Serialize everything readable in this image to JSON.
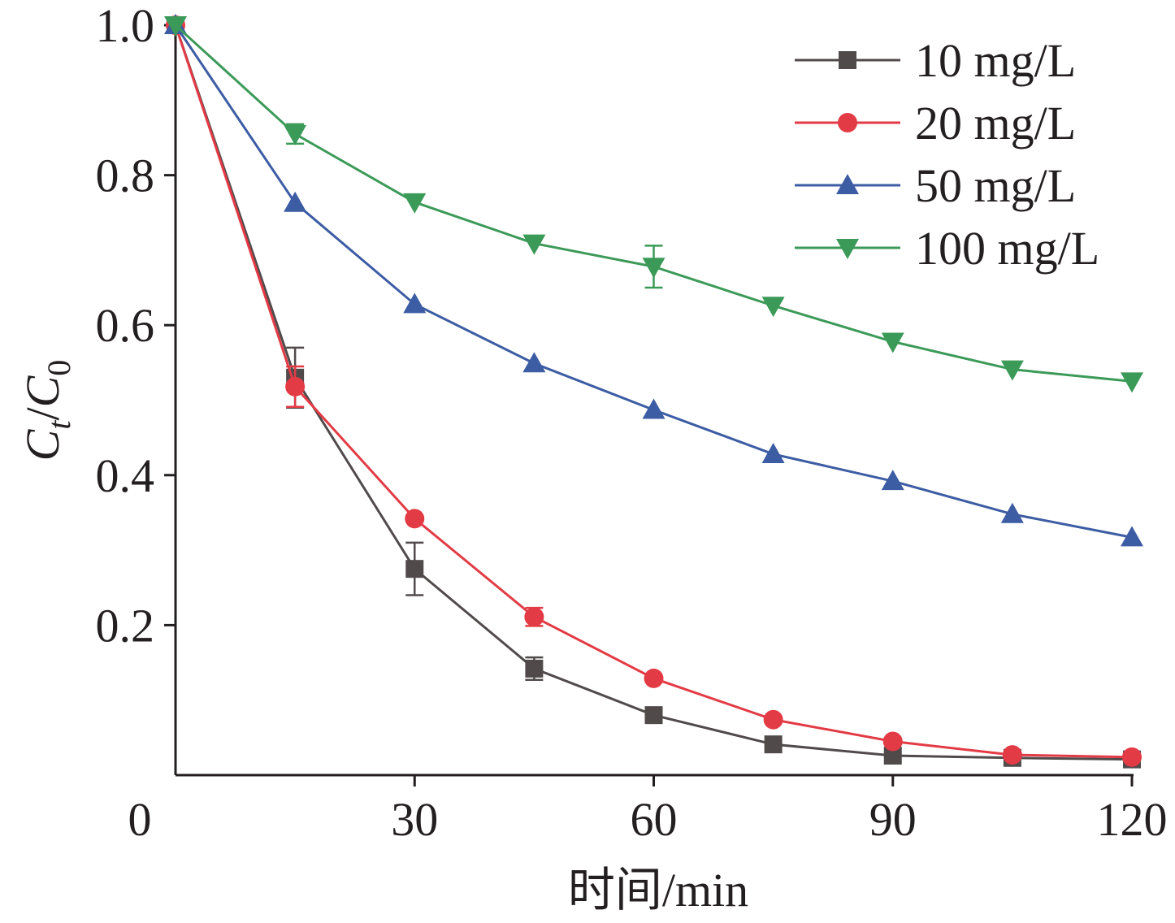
{
  "chart_data": {
    "type": "line",
    "xlabel": "时间/min",
    "ylabel": {
      "main": "C",
      "sub1": "t",
      "slash": "/",
      "main2": "C",
      "sub2": "0"
    },
    "xlim": [
      0,
      120
    ],
    "ylim": [
      0,
      1.0
    ],
    "xticks": [
      0,
      30,
      60,
      90,
      120
    ],
    "xtick_labels": [
      "0",
      "30",
      "60",
      "90",
      "120"
    ],
    "yticks": [
      0.2,
      0.4,
      0.6,
      0.8,
      1.0
    ],
    "ytick_labels": [
      "0.2",
      "0.4",
      "0.6",
      "0.8",
      "1.0"
    ],
    "grid": false,
    "legend_position": "top-right",
    "x": [
      0,
      15,
      30,
      45,
      60,
      75,
      90,
      105,
      120
    ],
    "series": [
      {
        "name": "10 mg/L",
        "color": "#504a4b",
        "marker": "square",
        "values": [
          1.0,
          0.53,
          0.275,
          0.142,
          0.08,
          0.041,
          0.026,
          0.023,
          0.021
        ],
        "errors": [
          0.0,
          0.04,
          0.035,
          0.015,
          0.0,
          0.0,
          0.0,
          0.0,
          0.0
        ]
      },
      {
        "name": "20 mg/L",
        "color": "#e33b45",
        "marker": "circle",
        "values": [
          1.0,
          0.518,
          0.342,
          0.211,
          0.129,
          0.074,
          0.045,
          0.027,
          0.024
        ],
        "errors": [
          0.0,
          0.027,
          0.0,
          0.012,
          0.0,
          0.0,
          0.0,
          0.0,
          0.0
        ]
      },
      {
        "name": "50 mg/L",
        "color": "#3c5ca4",
        "marker": "triangle-up",
        "values": [
          1.0,
          0.763,
          0.628,
          0.549,
          0.487,
          0.428,
          0.392,
          0.348,
          0.317
        ],
        "errors": [
          0.0,
          0.0,
          0.0,
          0.0,
          0.0,
          0.0,
          0.0,
          0.0,
          0.0
        ]
      },
      {
        "name": "100 mg/L",
        "color": "#3c9a58",
        "marker": "triangle-down",
        "values": [
          1.0,
          0.855,
          0.764,
          0.709,
          0.678,
          0.626,
          0.578,
          0.541,
          0.525
        ],
        "errors": [
          0.0,
          0.013,
          0.0,
          0.0,
          0.028,
          0.0,
          0.0,
          0.0,
          0.0
        ]
      }
    ]
  }
}
